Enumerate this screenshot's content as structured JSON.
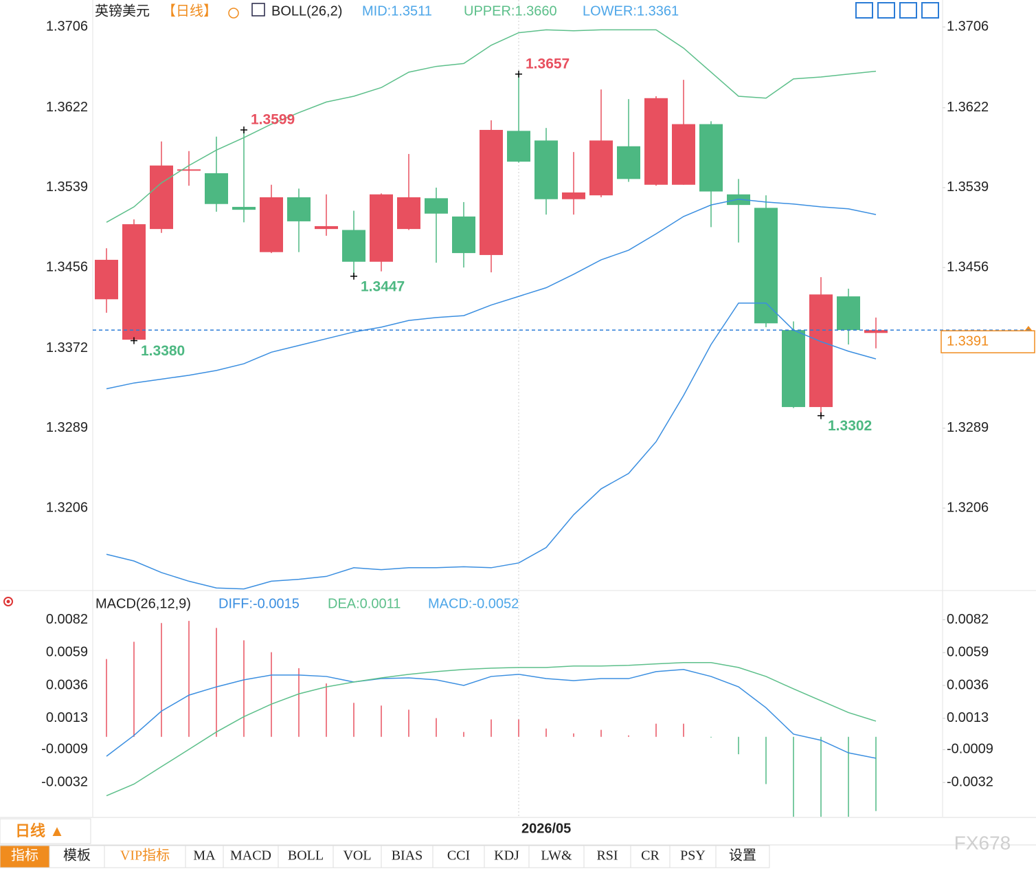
{
  "chart_data": [
    {
      "type": "candlestick",
      "title": "英镑美元",
      "period": "【日线】",
      "indicator": "BOLL(26,2)",
      "indicator_values": [
        {
          "text": "MID:1.3511",
          "color": "#4da6e8"
        },
        {
          "text": "UPPER:1.3660",
          "color": "#5cbf8a"
        },
        {
          "text": "LOWER:1.3361",
          "color": "#4da6e8"
        }
      ],
      "categories": [
        null,
        null,
        null,
        null,
        null,
        null,
        null,
        null,
        null,
        null,
        null,
        null,
        null,
        null,
        null,
        "2026/05",
        null,
        null,
        null,
        null,
        null,
        null,
        null,
        null,
        null,
        null,
        null,
        null,
        null
      ],
      "open": [
        1.3423,
        1.3381,
        1.3496,
        1.3557,
        1.3554,
        1.3519,
        1.3472,
        1.3529,
        1.3496,
        1.3495,
        1.3462,
        1.3496,
        1.3528,
        1.3509,
        1.3469,
        1.3598,
        1.3588,
        1.3527,
        1.3531,
        1.3582,
        1.3542,
        1.3542,
        1.3605,
        1.3532,
        1.3518,
        1.3391,
        1.3311,
        1.3426,
        1.3388
      ],
      "high": [
        1.3476,
        1.3506,
        1.3587,
        1.3577,
        1.3592,
        1.3599,
        1.3542,
        1.3538,
        1.3532,
        1.3515,
        1.3533,
        1.3574,
        1.3539,
        1.3524,
        1.3609,
        1.3657,
        1.3601,
        1.3576,
        1.3641,
        1.3631,
        1.3634,
        1.3651,
        1.3608,
        1.3548,
        1.3531,
        1.34,
        1.3446,
        1.3434,
        1.3404
      ],
      "low": [
        1.3409,
        1.338,
        1.3492,
        1.3541,
        1.3514,
        1.3503,
        1.3471,
        1.3472,
        1.3489,
        1.3447,
        1.3452,
        1.3495,
        1.3461,
        1.3456,
        1.3451,
        1.3565,
        1.3511,
        1.3511,
        1.3529,
        1.3545,
        1.3541,
        1.3542,
        1.3498,
        1.3482,
        1.3394,
        1.331,
        1.3302,
        1.3376,
        1.3372
      ],
      "close": [
        1.3464,
        1.3501,
        1.3562,
        1.3558,
        1.3522,
        1.3516,
        1.3529,
        1.3504,
        1.3499,
        1.3462,
        1.3532,
        1.3529,
        1.3512,
        1.3471,
        1.3599,
        1.3566,
        1.3527,
        1.3534,
        1.3588,
        1.3548,
        1.3632,
        1.3605,
        1.3535,
        1.3521,
        1.3398,
        1.3311,
        1.3428,
        1.3391,
        1.3391
      ],
      "up_color": "#e8505f",
      "down_color": "#4db882",
      "last_price_color": "#f08c1e",
      "series": [
        {
          "name": "UPPER",
          "color": "#5cbf8a",
          "values": [
            1.3503,
            1.3519,
            1.3544,
            1.3562,
            1.3578,
            1.3591,
            1.3605,
            1.3617,
            1.3628,
            1.3634,
            1.3643,
            1.3659,
            1.3665,
            1.3668,
            1.3687,
            1.37,
            1.3703,
            1.3702,
            1.3703,
            1.3703,
            1.3703,
            1.3684,
            1.3659,
            1.3634,
            1.3632,
            1.3652,
            1.3654,
            1.3657,
            1.366
          ]
        },
        {
          "name": "MID",
          "color": "#3a8ee0",
          "values": [
            1.333,
            1.3336,
            1.334,
            1.3344,
            1.3349,
            1.3356,
            1.3368,
            1.3375,
            1.3382,
            1.3389,
            1.3394,
            1.3401,
            1.3404,
            1.3406,
            1.3417,
            1.3426,
            1.3435,
            1.3449,
            1.3464,
            1.3474,
            1.3491,
            1.3509,
            1.3521,
            1.3527,
            1.3524,
            1.3522,
            1.3519,
            1.3517,
            1.3511
          ]
        },
        {
          "name": "LOWER",
          "color": "#3a8ee0",
          "values": [
            1.3158,
            1.3151,
            1.3139,
            1.313,
            1.3123,
            1.3122,
            1.313,
            1.3132,
            1.3135,
            1.3144,
            1.3142,
            1.3144,
            1.3144,
            1.3145,
            1.3144,
            1.3149,
            1.3165,
            1.3199,
            1.3226,
            1.3242,
            1.3275,
            1.3323,
            1.3376,
            1.3419,
            1.3419,
            1.3391,
            1.3379,
            1.3369,
            1.3361
          ]
        }
      ],
      "ylim": [
        1.3121,
        1.3734
      ],
      "yticks": [
        1.3706,
        1.3622,
        1.3539,
        1.3456,
        1.3372,
        1.3289,
        1.3206
      ],
      "annotations": [
        {
          "candle": 5,
          "value": 1.3599,
          "label": "1.3599"
        },
        {
          "candle": 15,
          "value": 1.3657,
          "label": "1.3657"
        },
        {
          "candle": 9,
          "value": 1.3447,
          "label": "1.3447"
        },
        {
          "candle": 1,
          "value": 1.338,
          "label": "1.3380"
        },
        {
          "candle": 26,
          "value": 1.3302,
          "label": "1.3302"
        }
      ]
    },
    {
      "type": "macd",
      "title": "MACD(26,12,9)",
      "indicator_values": [
        {
          "text": "DIFF:-0.0015",
          "color": "#3a8ee0"
        },
        {
          "text": "DEA:0.0011",
          "color": "#5cbf8a"
        },
        {
          "text": "MACD:-0.0052",
          "color": "#4da6e8"
        }
      ],
      "values": [
        0.00545,
        0.00666,
        0.00797,
        0.00812,
        0.00763,
        0.00676,
        0.00593,
        0.00481,
        0.00374,
        0.00238,
        0.00219,
        0.0019,
        0.00131,
        0.00034,
        0.00122,
        0.00122,
        0.00058,
        0.00024,
        0.00049,
        0.0001,
        0.00092,
        0.00092,
        -5e-05,
        -0.00122,
        -0.00331,
        -0.0058,
        -0.0058,
        -0.0058,
        -0.0052
      ],
      "up_color": "#e8505f",
      "down_color": "#4db882",
      "series": [
        {
          "name": "DIFF",
          "color": "#3a8ee0",
          "values": [
            -0.00136,
            0.0001,
            0.0018,
            0.00292,
            0.0035,
            0.00399,
            0.00433,
            0.00433,
            0.00423,
            0.00384,
            0.00408,
            0.00413,
            0.00399,
            0.0036,
            0.00423,
            0.00438,
            0.00408,
            0.00394,
            0.00408,
            0.00408,
            0.00457,
            0.00472,
            0.00423,
            0.0035,
            0.00204,
            0.00019,
            -0.00024,
            -0.00112,
            -0.0015
          ]
        },
        {
          "name": "DEA",
          "color": "#5cbf8a",
          "values": [
            -0.00413,
            -0.00331,
            -0.00209,
            -0.00088,
            0.00034,
            0.00141,
            0.00229,
            0.00301,
            0.0035,
            0.00384,
            0.00413,
            0.00438,
            0.00457,
            0.00472,
            0.00481,
            0.00486,
            0.00486,
            0.00496,
            0.00496,
            0.00501,
            0.00511,
            0.0052,
            0.0052,
            0.00486,
            0.00423,
            0.00336,
            0.00253,
            0.0017,
            0.0011
          ]
        }
      ],
      "ylim": [
        -0.0056,
        0.0102
      ],
      "yticks": [
        0.0082,
        0.0059,
        0.0036,
        0.0013,
        -0.0009,
        -0.0032
      ]
    }
  ],
  "toolbar": {
    "period": "日线 ▲",
    "tabs": [
      "指标",
      "模板",
      "VIP指标",
      "MA",
      "MACD",
      "BOLL",
      "VOL",
      "BIAS",
      "CCI",
      "KDJ",
      "LW&",
      "RSI",
      "CR",
      "PSY",
      "设置"
    ]
  },
  "watermark": "FX678"
}
